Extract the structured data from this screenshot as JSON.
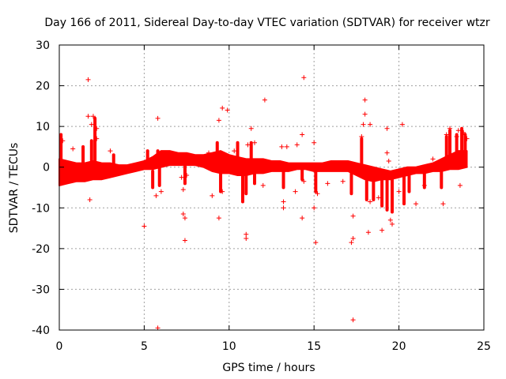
{
  "chart_data": {
    "type": "scatter",
    "title": "Day 166 of 2011, Sidereal Day-to-day VTEC variation (SDTVAR) for receiver wtzr",
    "xlabel": "GPS time / hours",
    "ylabel": "SDTVAR / TECUs",
    "xlim": [
      0,
      25
    ],
    "ylim": [
      -40,
      30
    ],
    "xticks": [
      0,
      5,
      10,
      15,
      20,
      25
    ],
    "yticks": [
      -40,
      -30,
      -20,
      -10,
      0,
      10,
      20,
      30
    ],
    "xtick_labels": [
      "0",
      "5",
      "10",
      "15",
      "20",
      "25"
    ],
    "ytick_labels": [
      "-40",
      "-30",
      "-20",
      "-10",
      "0",
      "10",
      "20",
      "30"
    ],
    "grid": true,
    "marker": "+",
    "series_color": "#ff0000",
    "band": [
      {
        "x": 0.0,
        "lo": -4.5,
        "hi": 2.0
      },
      {
        "x": 0.5,
        "lo": -4.0,
        "hi": 1.5
      },
      {
        "x": 1.0,
        "lo": -3.5,
        "hi": 1.0
      },
      {
        "x": 1.5,
        "lo": -3.5,
        "hi": 1.0
      },
      {
        "x": 2.0,
        "lo": -3.0,
        "hi": 1.5
      },
      {
        "x": 2.5,
        "lo": -3.0,
        "hi": 1.0
      },
      {
        "x": 3.0,
        "lo": -2.5,
        "hi": 1.0
      },
      {
        "x": 3.5,
        "lo": -2.0,
        "hi": 0.5
      },
      {
        "x": 4.0,
        "lo": -1.5,
        "hi": 0.5
      },
      {
        "x": 4.5,
        "lo": -1.0,
        "hi": 1.0
      },
      {
        "x": 5.0,
        "lo": -0.5,
        "hi": 1.5
      },
      {
        "x": 5.5,
        "lo": -0.5,
        "hi": 2.5
      },
      {
        "x": 6.0,
        "lo": 0.0,
        "hi": 4.0
      },
      {
        "x": 6.5,
        "lo": 0.5,
        "hi": 4.0
      },
      {
        "x": 7.0,
        "lo": 0.5,
        "hi": 3.5
      },
      {
        "x": 7.5,
        "lo": 0.5,
        "hi": 3.5
      },
      {
        "x": 8.0,
        "lo": 0.5,
        "hi": 3.0
      },
      {
        "x": 8.5,
        "lo": 0.0,
        "hi": 3.0
      },
      {
        "x": 9.0,
        "lo": -1.0,
        "hi": 3.5
      },
      {
        "x": 9.5,
        "lo": -1.5,
        "hi": 4.0
      },
      {
        "x": 10.0,
        "lo": -1.5,
        "hi": 3.0
      },
      {
        "x": 10.5,
        "lo": -2.0,
        "hi": 2.5
      },
      {
        "x": 11.0,
        "lo": -2.0,
        "hi": 2.0
      },
      {
        "x": 11.5,
        "lo": -1.5,
        "hi": 2.0
      },
      {
        "x": 12.0,
        "lo": -1.5,
        "hi": 2.0
      },
      {
        "x": 12.5,
        "lo": -1.0,
        "hi": 1.5
      },
      {
        "x": 13.0,
        "lo": -1.0,
        "hi": 1.5
      },
      {
        "x": 13.5,
        "lo": -1.0,
        "hi": 1.0
      },
      {
        "x": 14.0,
        "lo": -0.5,
        "hi": 1.0
      },
      {
        "x": 14.5,
        "lo": -0.5,
        "hi": 1.0
      },
      {
        "x": 15.0,
        "lo": -1.0,
        "hi": 1.0
      },
      {
        "x": 15.5,
        "lo": -1.0,
        "hi": 1.0
      },
      {
        "x": 16.0,
        "lo": -1.0,
        "hi": 1.5
      },
      {
        "x": 16.5,
        "lo": -1.0,
        "hi": 1.5
      },
      {
        "x": 17.0,
        "lo": -1.0,
        "hi": 1.5
      },
      {
        "x": 17.5,
        "lo": -2.0,
        "hi": 1.0
      },
      {
        "x": 18.0,
        "lo": -3.0,
        "hi": 0.5
      },
      {
        "x": 18.5,
        "lo": -3.5,
        "hi": 0.0
      },
      {
        "x": 19.0,
        "lo": -3.0,
        "hi": -0.5
      },
      {
        "x": 19.5,
        "lo": -3.0,
        "hi": -1.0
      },
      {
        "x": 20.0,
        "lo": -2.5,
        "hi": -0.5
      },
      {
        "x": 20.5,
        "lo": -2.0,
        "hi": 0.0
      },
      {
        "x": 21.0,
        "lo": -1.5,
        "hi": 0.0
      },
      {
        "x": 21.5,
        "lo": -1.5,
        "hi": 0.5
      },
      {
        "x": 22.0,
        "lo": -1.0,
        "hi": 1.0
      },
      {
        "x": 22.5,
        "lo": -1.0,
        "hi": 2.0
      },
      {
        "x": 23.0,
        "lo": -0.5,
        "hi": 3.0
      },
      {
        "x": 23.5,
        "lo": -0.5,
        "hi": 4.0
      },
      {
        "x": 24.0,
        "lo": 0.0,
        "hi": 4.0
      }
    ],
    "spikes": [
      {
        "x": 0.1,
        "y0": -4.0,
        "y1": 8.0
      },
      {
        "x": 1.4,
        "y0": 1.0,
        "y1": 5.0
      },
      {
        "x": 1.9,
        "y0": 1.0,
        "y1": 6.5
      },
      {
        "x": 2.1,
        "y0": 1.0,
        "y1": 12.0
      },
      {
        "x": 3.2,
        "y0": -2.0,
        "y1": 3.0
      },
      {
        "x": 5.2,
        "y0": 0.0,
        "y1": 4.0
      },
      {
        "x": 5.5,
        "y0": -1.0,
        "y1": -5.0
      },
      {
        "x": 5.8,
        "y0": 1.0,
        "y1": 4.0
      },
      {
        "x": 5.9,
        "y0": 0.0,
        "y1": -4.5
      },
      {
        "x": 7.4,
        "y0": 1.0,
        "y1": -4.0
      },
      {
        "x": 9.3,
        "y0": 2.0,
        "y1": 6.0
      },
      {
        "x": 9.5,
        "y0": 1.0,
        "y1": -6.0
      },
      {
        "x": 10.5,
        "y0": 1.0,
        "y1": 6.0
      },
      {
        "x": 10.8,
        "y0": -1.0,
        "y1": -8.5
      },
      {
        "x": 11.0,
        "y0": -1.0,
        "y1": -6.5
      },
      {
        "x": 11.3,
        "y0": 0.0,
        "y1": 6.0
      },
      {
        "x": 11.5,
        "y0": 0.0,
        "y1": -4.0
      },
      {
        "x": 13.2,
        "y0": 0.0,
        "y1": -5.0
      },
      {
        "x": 14.3,
        "y0": 0.0,
        "y1": -3.0
      },
      {
        "x": 15.1,
        "y0": 0.0,
        "y1": -6.0
      },
      {
        "x": 17.2,
        "y0": -1.0,
        "y1": -6.5
      },
      {
        "x": 17.8,
        "y0": 0.0,
        "y1": 7.0
      },
      {
        "x": 18.1,
        "y0": -1.0,
        "y1": -8.0
      },
      {
        "x": 18.5,
        "y0": -1.0,
        "y1": -8.0
      },
      {
        "x": 19.0,
        "y0": -2.0,
        "y1": -9.5
      },
      {
        "x": 19.3,
        "y0": -2.0,
        "y1": -10.5
      },
      {
        "x": 19.6,
        "y0": -2.0,
        "y1": -11.0
      },
      {
        "x": 20.3,
        "y0": -1.0,
        "y1": -9.0
      },
      {
        "x": 20.6,
        "y0": -1.0,
        "y1": -6.0
      },
      {
        "x": 21.5,
        "y0": 0.0,
        "y1": -5.0
      },
      {
        "x": 22.5,
        "y0": 0.0,
        "y1": -5.0
      },
      {
        "x": 22.8,
        "y0": 1.0,
        "y1": 7.5
      },
      {
        "x": 23.0,
        "y0": 1.0,
        "y1": 9.0
      },
      {
        "x": 23.4,
        "y0": 1.0,
        "y1": 8.0
      },
      {
        "x": 23.7,
        "y0": 1.0,
        "y1": 9.5
      },
      {
        "x": 23.9,
        "y0": 1.0,
        "y1": 8.0
      }
    ],
    "points": [
      {
        "x": 0.1,
        "y": -4.0
      },
      {
        "x": 0.2,
        "y": 6.5
      },
      {
        "x": 0.8,
        "y": 4.5
      },
      {
        "x": 1.7,
        "y": 21.5
      },
      {
        "x": 1.7,
        "y": 12.5
      },
      {
        "x": 1.8,
        "y": -8.0
      },
      {
        "x": 1.9,
        "y": 10.5
      },
      {
        "x": 2.0,
        "y": 12.5
      },
      {
        "x": 2.2,
        "y": 9.5
      },
      {
        "x": 2.2,
        "y": 7.0
      },
      {
        "x": 3.0,
        "y": 4.0
      },
      {
        "x": 5.0,
        "y": -14.5
      },
      {
        "x": 5.7,
        "y": -7.0
      },
      {
        "x": 5.8,
        "y": 12.0
      },
      {
        "x": 5.8,
        "y": -39.5
      },
      {
        "x": 6.0,
        "y": -6.0
      },
      {
        "x": 7.2,
        "y": -2.5
      },
      {
        "x": 7.3,
        "y": -11.5
      },
      {
        "x": 7.3,
        "y": -5.5
      },
      {
        "x": 7.4,
        "y": -18.0
      },
      {
        "x": 7.4,
        "y": -12.5
      },
      {
        "x": 7.5,
        "y": -2.0
      },
      {
        "x": 8.8,
        "y": 3.5
      },
      {
        "x": 9.0,
        "y": -7.0
      },
      {
        "x": 9.4,
        "y": 11.5
      },
      {
        "x": 9.4,
        "y": -12.5
      },
      {
        "x": 9.6,
        "y": 14.5
      },
      {
        "x": 9.6,
        "y": -6.0
      },
      {
        "x": 9.9,
        "y": 14.0
      },
      {
        "x": 10.3,
        "y": 4.0
      },
      {
        "x": 11.0,
        "y": -16.5
      },
      {
        "x": 11.0,
        "y": -17.5
      },
      {
        "x": 11.1,
        "y": 5.5
      },
      {
        "x": 11.3,
        "y": 9.5
      },
      {
        "x": 11.5,
        "y": 6.0
      },
      {
        "x": 12.1,
        "y": 16.5
      },
      {
        "x": 12.0,
        "y": -4.5
      },
      {
        "x": 13.1,
        "y": 5.0
      },
      {
        "x": 13.2,
        "y": -8.5
      },
      {
        "x": 13.2,
        "y": -10.0
      },
      {
        "x": 13.4,
        "y": 5.0
      },
      {
        "x": 13.9,
        "y": -6.0
      },
      {
        "x": 14.0,
        "y": 5.5
      },
      {
        "x": 14.3,
        "y": 8.0
      },
      {
        "x": 14.3,
        "y": -12.5
      },
      {
        "x": 14.4,
        "y": 22.0
      },
      {
        "x": 14.4,
        "y": -3.5
      },
      {
        "x": 15.0,
        "y": 6.0
      },
      {
        "x": 15.0,
        "y": -10.0
      },
      {
        "x": 15.1,
        "y": -18.5
      },
      {
        "x": 15.2,
        "y": -6.5
      },
      {
        "x": 15.8,
        "y": -4.0
      },
      {
        "x": 16.7,
        "y": -3.5
      },
      {
        "x": 17.2,
        "y": -18.5
      },
      {
        "x": 17.3,
        "y": -17.5
      },
      {
        "x": 17.3,
        "y": -12.0
      },
      {
        "x": 17.3,
        "y": -37.5
      },
      {
        "x": 17.8,
        "y": 7.5
      },
      {
        "x": 17.9,
        "y": 10.5
      },
      {
        "x": 18.0,
        "y": 16.5
      },
      {
        "x": 18.0,
        "y": 13.0
      },
      {
        "x": 18.2,
        "y": -16.0
      },
      {
        "x": 18.3,
        "y": 10.5
      },
      {
        "x": 18.3,
        "y": -8.5
      },
      {
        "x": 18.8,
        "y": -7.5
      },
      {
        "x": 19.0,
        "y": -15.5
      },
      {
        "x": 19.3,
        "y": 9.5
      },
      {
        "x": 19.3,
        "y": 3.5
      },
      {
        "x": 19.4,
        "y": 1.5
      },
      {
        "x": 19.5,
        "y": -13.0
      },
      {
        "x": 19.6,
        "y": -14.0
      },
      {
        "x": 20.0,
        "y": -6.0
      },
      {
        "x": 20.2,
        "y": 10.5
      },
      {
        "x": 21.0,
        "y": -9.0
      },
      {
        "x": 21.5,
        "y": -4.5
      },
      {
        "x": 22.0,
        "y": 2.0
      },
      {
        "x": 22.6,
        "y": -9.0
      },
      {
        "x": 22.8,
        "y": 8.0
      },
      {
        "x": 23.0,
        "y": 9.5
      },
      {
        "x": 23.4,
        "y": 7.5
      },
      {
        "x": 23.5,
        "y": 9.0
      },
      {
        "x": 23.6,
        "y": -4.5
      },
      {
        "x": 23.8,
        "y": 8.5
      },
      {
        "x": 24.0,
        "y": 7.0
      }
    ]
  }
}
